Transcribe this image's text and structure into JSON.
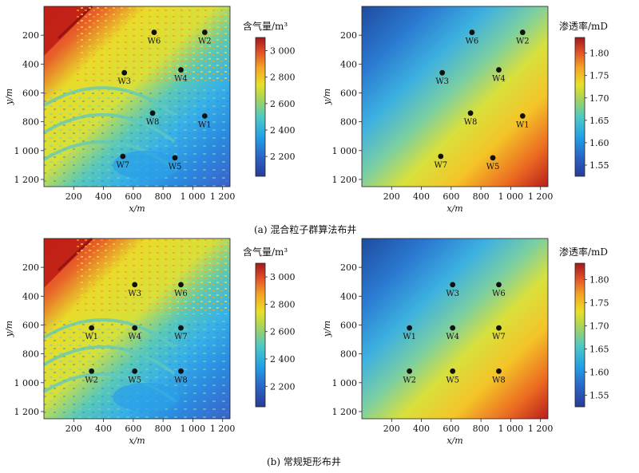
{
  "captions": {
    "a": "(a) 混合粒子群算法布井",
    "b": "(b) 常规矩形布井"
  },
  "axes": {
    "xlabel": "x/m",
    "ylabel": "y/m",
    "xlim": [
      0,
      1250
    ],
    "ylim": [
      0,
      1250
    ],
    "x_ticks": [
      200,
      400,
      600,
      800,
      1000,
      1200
    ],
    "x_tick_labels": [
      "200",
      "400",
      "600",
      "800",
      "1 000",
      "1 200"
    ],
    "y_ticks": [
      200,
      400,
      600,
      800,
      1000,
      1200
    ],
    "y_tick_labels": [
      "200",
      "400",
      "600",
      "800",
      "1 000",
      "1 200"
    ],
    "y_inverted": true
  },
  "colorbars": {
    "gas": {
      "title": "含气量/m³",
      "range": [
        2050,
        3100
      ],
      "ticks": [
        2200,
        2400,
        2600,
        2800,
        3000
      ],
      "tick_labels": [
        "2 200",
        "2 400",
        "2 600",
        "2 800",
        "3 000"
      ]
    },
    "perm": {
      "title": "渗透率/mD",
      "range": [
        1.525,
        1.835
      ],
      "ticks": [
        1.55,
        1.6,
        1.65,
        1.7,
        1.75,
        1.8
      ],
      "tick_labels": [
        "1.55",
        "1.60",
        "1.65",
        "1.70",
        "1.75",
        "1.80"
      ]
    }
  },
  "chart_data": [
    {
      "type": "heatmap",
      "panel": "a-gas",
      "field": "含气量/m³",
      "xlabel": "x/m",
      "ylabel": "y/m",
      "wells": [
        {
          "name": "W6",
          "x": 740,
          "y": 180
        },
        {
          "name": "W2",
          "x": 1080,
          "y": 180
        },
        {
          "name": "W3",
          "x": 540,
          "y": 460
        },
        {
          "name": "W4",
          "x": 920,
          "y": 440
        },
        {
          "name": "W8",
          "x": 730,
          "y": 740
        },
        {
          "name": "W1",
          "x": 1080,
          "y": 760
        },
        {
          "name": "W7",
          "x": 530,
          "y": 1040
        },
        {
          "name": "W5",
          "x": 880,
          "y": 1050
        }
      ]
    },
    {
      "type": "heatmap",
      "panel": "a-perm",
      "field": "渗透率/mD",
      "xlabel": "x/m",
      "ylabel": "y/m",
      "wells": [
        {
          "name": "W6",
          "x": 740,
          "y": 180
        },
        {
          "name": "W2",
          "x": 1080,
          "y": 180
        },
        {
          "name": "W3",
          "x": 540,
          "y": 460
        },
        {
          "name": "W4",
          "x": 920,
          "y": 440
        },
        {
          "name": "W8",
          "x": 730,
          "y": 740
        },
        {
          "name": "W1",
          "x": 1080,
          "y": 760
        },
        {
          "name": "W7",
          "x": 530,
          "y": 1040
        },
        {
          "name": "W5",
          "x": 880,
          "y": 1050
        }
      ]
    },
    {
      "type": "heatmap",
      "panel": "b-gas",
      "field": "含气量/m³",
      "xlabel": "x/m",
      "ylabel": "y/m",
      "wells": [
        {
          "name": "W3",
          "x": 610,
          "y": 320
        },
        {
          "name": "W6",
          "x": 920,
          "y": 320
        },
        {
          "name": "W1",
          "x": 320,
          "y": 620
        },
        {
          "name": "W4",
          "x": 610,
          "y": 620
        },
        {
          "name": "W7",
          "x": 920,
          "y": 620
        },
        {
          "name": "W2",
          "x": 320,
          "y": 920
        },
        {
          "name": "W5",
          "x": 610,
          "y": 920
        },
        {
          "name": "W8",
          "x": 920,
          "y": 920
        }
      ]
    },
    {
      "type": "heatmap",
      "panel": "b-perm",
      "field": "渗透率/mD",
      "xlabel": "x/m",
      "ylabel": "y/m",
      "wells": [
        {
          "name": "W3",
          "x": 610,
          "y": 320
        },
        {
          "name": "W6",
          "x": 920,
          "y": 320
        },
        {
          "name": "W1",
          "x": 320,
          "y": 620
        },
        {
          "name": "W4",
          "x": 610,
          "y": 620
        },
        {
          "name": "W7",
          "x": 920,
          "y": 620
        },
        {
          "name": "W2",
          "x": 320,
          "y": 920
        },
        {
          "name": "W5",
          "x": 610,
          "y": 920
        },
        {
          "name": "W8",
          "x": 920,
          "y": 920
        }
      ]
    }
  ]
}
